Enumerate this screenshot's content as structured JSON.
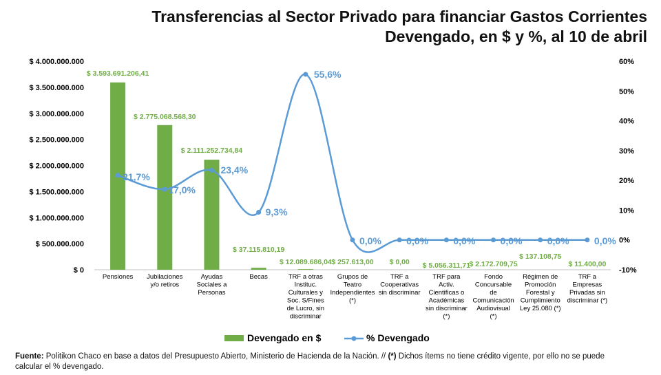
{
  "title_line1": "Transferencias al Sector Privado para financiar Gastos Corrientes",
  "title_line2": "Devengado, en $ y %, al 10 de abril",
  "footer": {
    "source_label": "Fuente:",
    "source_text": " Politikon Chaco en base a datos del Presupuesto Abierto, Ministerio de Hacienda de la Nación. // ",
    "note_mark": "(*)",
    "note_text": " Dichos ítems no tiene crédito vigente, por ello no se puede calcular el % devengado."
  },
  "colors": {
    "bar": "#70AD47",
    "line": "#5B9BD5",
    "axis_text": "#000000",
    "bar_label": "#70AD47",
    "line_label": "#5B9BD5"
  },
  "chart_data": {
    "type": "bar",
    "categories": [
      [
        "Pensiones"
      ],
      [
        "Jubilaciones",
        "y/o retiros"
      ],
      [
        "Ayudas",
        "Sociales a",
        "Personas"
      ],
      [
        "Becas"
      ],
      [
        "TRF a otras",
        "Instituc.",
        "Culturales y",
        "Soc. S/Fines",
        "de Lucro, sin",
        "discriminar"
      ],
      [
        "Grupos de",
        "Teatro",
        "Independientes",
        "(*)"
      ],
      [
        "TRF a",
        "Cooperativas",
        "sin discriminar"
      ],
      [
        "TRF para",
        "Activ.",
        "Cientificas o",
        "Académicas",
        "sin discriminar",
        "(*)"
      ],
      [
        "Fondo",
        "Concursable",
        "de",
        "Comunicación",
        "Audiovisual",
        "(*)"
      ],
      [
        "Régimen de",
        "Promoción",
        "Forestal y",
        "Cumplimiento",
        "Ley 25.080 (*)"
      ],
      [
        "TRF a",
        "Empresas",
        "Privadas sin",
        "discriminar (*)"
      ]
    ],
    "series": [
      {
        "name": "Devengado en $",
        "type": "bar",
        "axis": "left",
        "values": [
          3593691206.41,
          2775068568.3,
          2111252734.84,
          37115810.19,
          12089686.04,
          257613.0,
          0,
          5056311.71,
          2172709.75,
          137108.75,
          11400.0
        ],
        "labels": [
          "$ 3.593.691.206,41",
          "$ 2.775.068.568,30",
          "$ 2.111.252.734,84",
          "$ 37.115.810,19",
          "$ 12.089.686,04",
          "$ 257.613,00",
          "$ 0,00",
          "$ 5.056.311,71",
          "$ 2.172.709,75",
          "$ 137.108,75",
          "$ 11.400,00"
        ]
      },
      {
        "name": "% Devengado",
        "type": "line",
        "axis": "right",
        "values": [
          21.7,
          17.0,
          23.4,
          9.3,
          55.6,
          0.0,
          0.0,
          0.0,
          0.0,
          0.0,
          0.0
        ],
        "labels": [
          "21,7%",
          "17,0%",
          "23,4%",
          "9,3%",
          "55,6%",
          "0,0%",
          "0,0%",
          "0,0%",
          "0,0%",
          "0,0%",
          "0,0%"
        ]
      }
    ],
    "y_left": {
      "ylim": [
        0,
        4000000000
      ],
      "ticks": [
        0,
        500000000,
        1000000000,
        1500000000,
        2000000000,
        2500000000,
        3000000000,
        3500000000,
        4000000000
      ],
      "tick_labels": [
        "$ 0",
        "$ 500.000.000",
        "$ 1.000.000.000",
        "$ 1.500.000.000",
        "$ 2.000.000.000",
        "$ 2.500.000.000",
        "$ 3.000.000.000",
        "$ 3.500.000.000",
        "$ 4.000.000.000"
      ]
    },
    "y_right": {
      "ylim": [
        -10,
        60
      ],
      "ticks": [
        -10,
        0,
        10,
        20,
        30,
        40,
        50,
        60
      ],
      "tick_labels": [
        "-10%",
        "0%",
        "10%",
        "20%",
        "30%",
        "40%",
        "50%",
        "60%"
      ]
    },
    "legend": {
      "placement": "bottom",
      "entries": [
        "Devengado en $",
        "% Devengado"
      ]
    },
    "grid": false
  }
}
